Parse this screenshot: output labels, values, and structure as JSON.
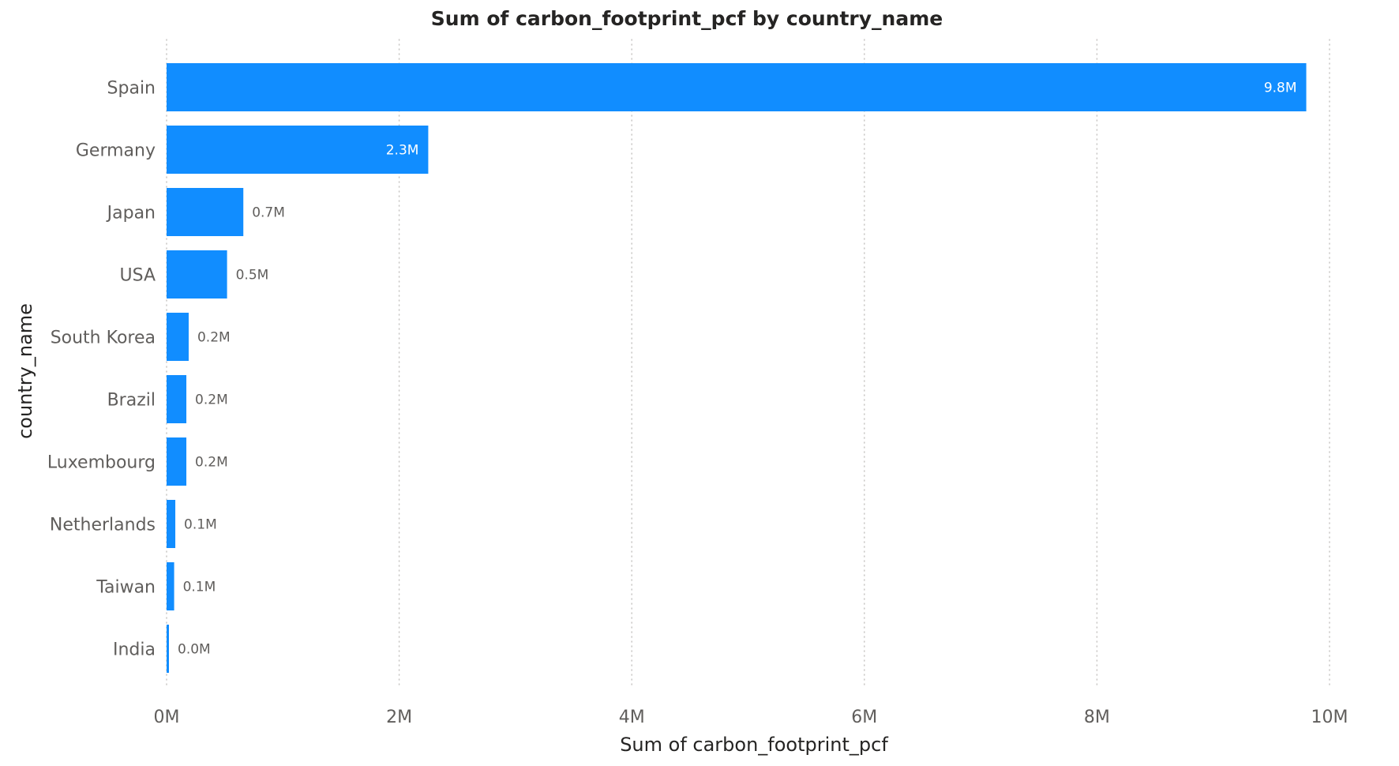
{
  "chart_data": {
    "type": "bar",
    "orientation": "horizontal",
    "title": "Sum of carbon_footprint_pcf by country_name",
    "xlabel": "Sum of carbon_footprint_pcf",
    "ylabel": "country_name",
    "categories": [
      "Spain",
      "Germany",
      "Japan",
      "USA",
      "South Korea",
      "Brazil",
      "Luxembourg",
      "Netherlands",
      "Taiwan",
      "India"
    ],
    "values": [
      9800000,
      2250000,
      660000,
      520000,
      190000,
      170000,
      170000,
      75000,
      65000,
      20000
    ],
    "data_labels": [
      "9.8M",
      "2.3M",
      "0.7M",
      "0.5M",
      "0.2M",
      "0.2M",
      "0.2M",
      "0.1M",
      "0.1M",
      "0.0M"
    ],
    "xlim": [
      0,
      10000000
    ],
    "x_ticks": [
      0,
      2000000,
      4000000,
      6000000,
      8000000,
      10000000
    ],
    "x_tick_labels": [
      "0M",
      "2M",
      "4M",
      "6M",
      "8M",
      "10M"
    ],
    "grid": true,
    "bar_color": "#118dff"
  }
}
